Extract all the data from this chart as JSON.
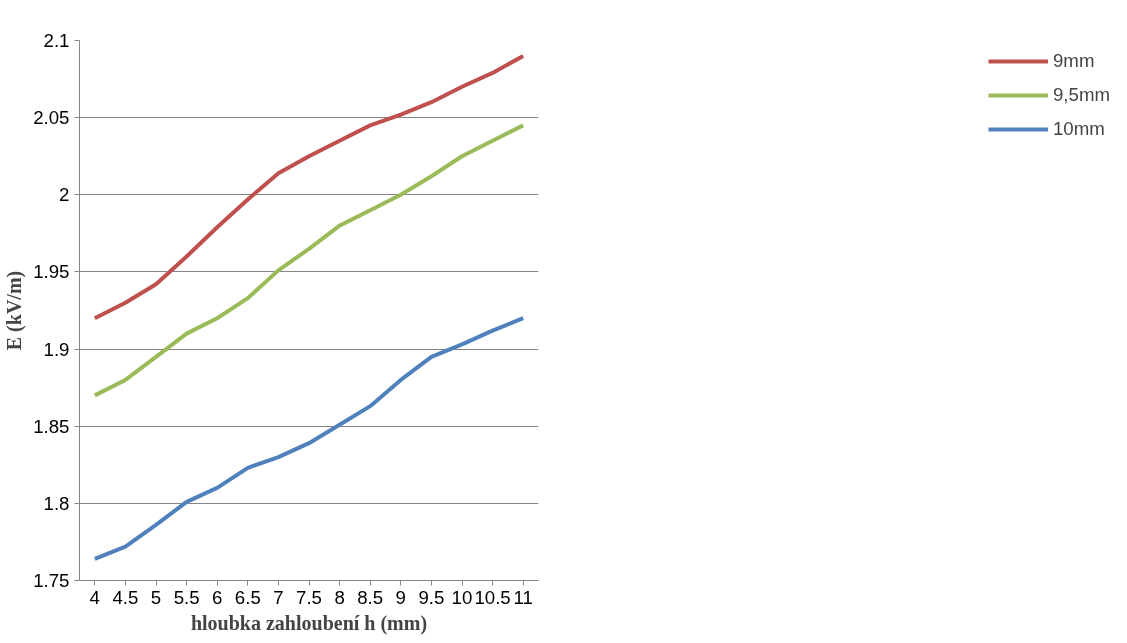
{
  "chart_data": {
    "type": "line",
    "xlabel": "hloubka zahloubení h (mm)",
    "ylabel": "E (kV/m)",
    "categories": [
      "4",
      "4.5",
      "5",
      "5.5",
      "6",
      "6.5",
      "7",
      "7.5",
      "8",
      "8.5",
      "9",
      "9.5",
      "10",
      "10.5",
      "11"
    ],
    "series": [
      {
        "name": "9mm",
        "color": "#c0504d",
        "values": [
          1.92,
          1.93,
          1.942,
          1.96,
          1.979,
          1.997,
          2.014,
          2.025,
          2.035,
          2.045,
          2.052,
          2.06,
          2.07,
          2.079,
          2.09
        ]
      },
      {
        "name": "9,5mm",
        "color": "#9bbb59",
        "values": [
          1.87,
          1.88,
          1.895,
          1.91,
          1.92,
          1.933,
          1.951,
          1.965,
          1.98,
          1.99,
          2.0,
          2.012,
          2.025,
          2.035,
          2.045
        ]
      },
      {
        "name": "10mm",
        "color": "#4f81bd",
        "values": [
          1.764,
          1.772,
          1.786,
          1.801,
          1.81,
          1.823,
          1.83,
          1.839,
          1.851,
          1.863,
          1.88,
          1.895,
          1.903,
          1.912,
          1.92
        ]
      }
    ],
    "ylim": [
      1.75,
      2.1
    ],
    "yticks": [
      1.75,
      1.8,
      1.85,
      1.9,
      1.95,
      2,
      2.05,
      2.1
    ],
    "grid": "y",
    "legend": "right",
    "marker": "none",
    "line_style": "solid"
  }
}
